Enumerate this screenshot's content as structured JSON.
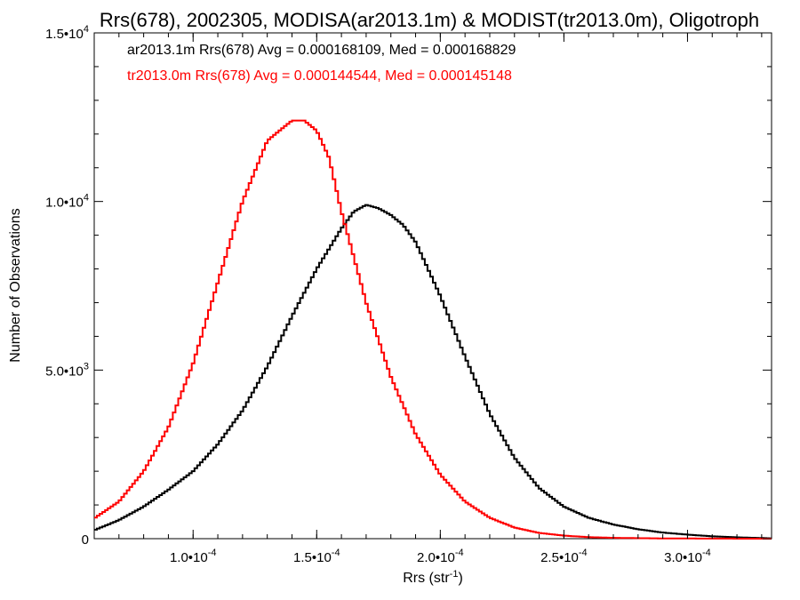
{
  "chart_data": {
    "type": "line",
    "title": "Rrs(678), 2002305, MODISA(ar2013.1m) & MODIST(tr2013.0m), Oligotroph",
    "xlabel": "Rrs (str",
    "xlabel_sup": "-1",
    "xlabel_end": ")",
    "ylabel": "Number of Observations",
    "xlim": [
      6e-05,
      0.000334
    ],
    "ylim": [
      0,
      15000
    ],
    "x_ticks": [
      {
        "value": 0.0001,
        "label": "1.0•10",
        "exp": "-4"
      },
      {
        "value": 0.00015,
        "label": "1.5•10",
        "exp": "-4"
      },
      {
        "value": 0.0002,
        "label": "2.0•10",
        "exp": "-4"
      },
      {
        "value": 0.00025,
        "label": "2.5•10",
        "exp": "-4"
      },
      {
        "value": 0.0003,
        "label": "3.0•10",
        "exp": "-4"
      }
    ],
    "y_ticks": [
      {
        "value": 0,
        "label": "0",
        "exp": ""
      },
      {
        "value": 5000,
        "label": "5.0•10",
        "exp": "3"
      },
      {
        "value": 10000,
        "label": "1.0•10",
        "exp": "4"
      },
      {
        "value": 15000,
        "label": "1.5•10",
        "exp": "4"
      }
    ],
    "annotations": [
      "ar2013.1m Rrs(678) Avg = 0.000168109, Med = 0.000168829",
      "tr2013.0m Rrs(678) Avg = 0.000144544, Med = 0.000145148"
    ],
    "series": [
      {
        "color": "#000000",
        "x": [
          6e-05,
          7e-05,
          8e-05,
          9e-05,
          0.0001,
          0.00011,
          0.00012,
          0.00013,
          0.00014,
          0.00015,
          0.00016,
          0.000165,
          0.00017,
          0.000175,
          0.00018,
          0.000185,
          0.00019,
          0.0002,
          0.00021,
          0.00022,
          0.00023,
          0.00024,
          0.00025,
          0.00026,
          0.00027,
          0.00028,
          0.00029,
          0.0003,
          0.00031,
          0.00032,
          0.000334
        ],
        "y": [
          250,
          550,
          950,
          1450,
          2000,
          2800,
          3800,
          5100,
          6600,
          8000,
          9200,
          9700,
          9900,
          9800,
          9600,
          9300,
          8800,
          7200,
          5400,
          3700,
          2400,
          1500,
          950,
          620,
          420,
          280,
          180,
          120,
          70,
          40,
          10
        ]
      },
      {
        "color": "#ff0000",
        "x": [
          6e-05,
          7e-05,
          8e-05,
          9e-05,
          0.0001,
          0.00011,
          0.00012,
          0.00013,
          0.00014,
          0.000145,
          0.00015,
          0.000155,
          0.00016,
          0.00017,
          0.00018,
          0.00019,
          0.0002,
          0.00021,
          0.00022,
          0.00023,
          0.00024,
          0.00025,
          0.00026,
          0.00027,
          0.00028,
          0.00029,
          0.0003,
          0.00031,
          0.000334
        ],
        "y": [
          600,
          1100,
          2000,
          3300,
          5200,
          7600,
          10000,
          11800,
          12400,
          12400,
          12100,
          11300,
          9700,
          7000,
          4800,
          3100,
          1900,
          1100,
          620,
          330,
          170,
          90,
          45,
          25,
          15,
          8,
          5,
          2,
          0
        ]
      }
    ]
  }
}
